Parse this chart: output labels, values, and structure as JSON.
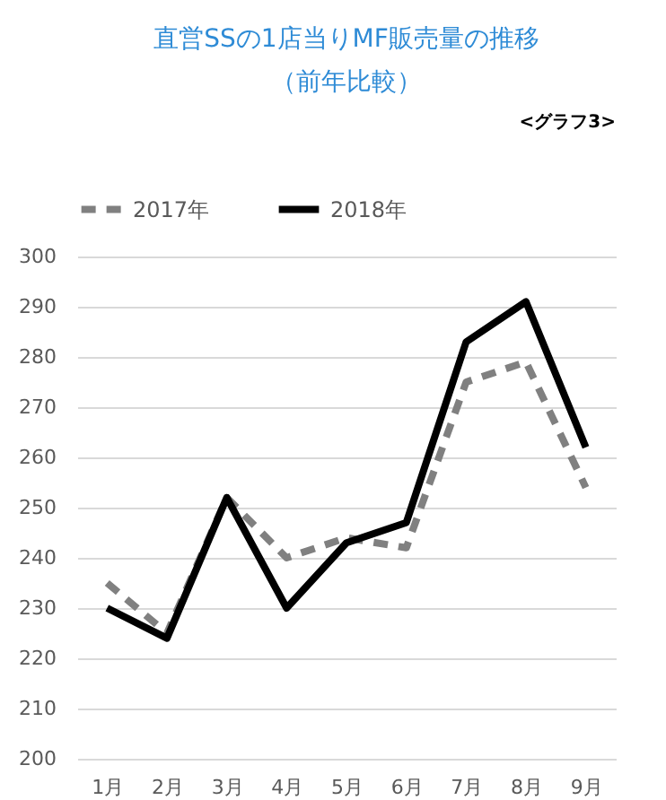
{
  "chart_data": {
    "type": "line",
    "title": "直営SSの1店当りMF販売量の推移",
    "subtitle": "（前年比較）",
    "annotations": [
      "<グラフ3>"
    ],
    "categories": [
      "1月",
      "2月",
      "3月",
      "4月",
      "5月",
      "6月",
      "7月",
      "8月",
      "9月"
    ],
    "series": [
      {
        "name": "2017年",
        "color": "#808080",
        "line_style": "dashed",
        "values": [
          235,
          225,
          252,
          240,
          244,
          242,
          275,
          279,
          254
        ]
      },
      {
        "name": "2018年",
        "color": "#000000",
        "line_style": "solid",
        "values": [
          230,
          224,
          252,
          230,
          243,
          247,
          283,
          291,
          262
        ]
      }
    ],
    "ylim": [
      200,
      300
    ],
    "yticks": [
      200,
      210,
      220,
      230,
      240,
      250,
      260,
      270,
      280,
      290,
      300
    ],
    "grid": "y",
    "legend": "top",
    "marker": "none"
  }
}
